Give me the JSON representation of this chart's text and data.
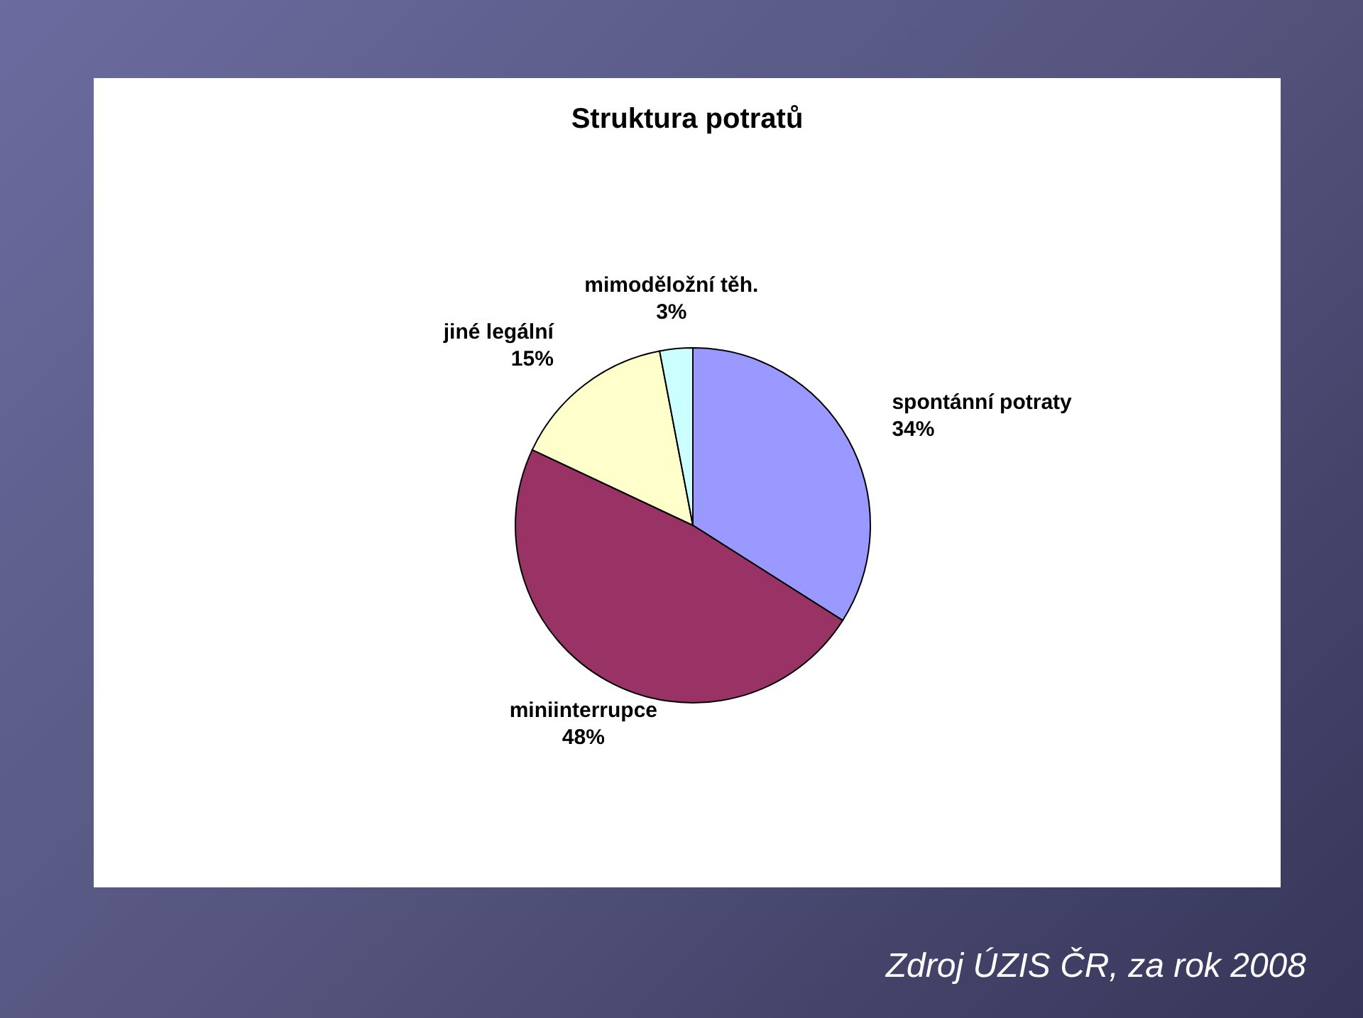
{
  "chart_data": {
    "type": "pie",
    "title": "Struktura potratů",
    "categories": [
      "spontánní potraty",
      "miniinterrupce",
      "jiné legální",
      "mimoděložní těh."
    ],
    "values": [
      34,
      48,
      15,
      3
    ],
    "colors": [
      "#9999ff",
      "#993366",
      "#ffffcc",
      "#ccffff"
    ],
    "value_labels": [
      "34%",
      "48%",
      "15%",
      "3%"
    ],
    "annotations": [
      "Zdroj ÚZIS ČR, za rok 2008"
    ]
  }
}
